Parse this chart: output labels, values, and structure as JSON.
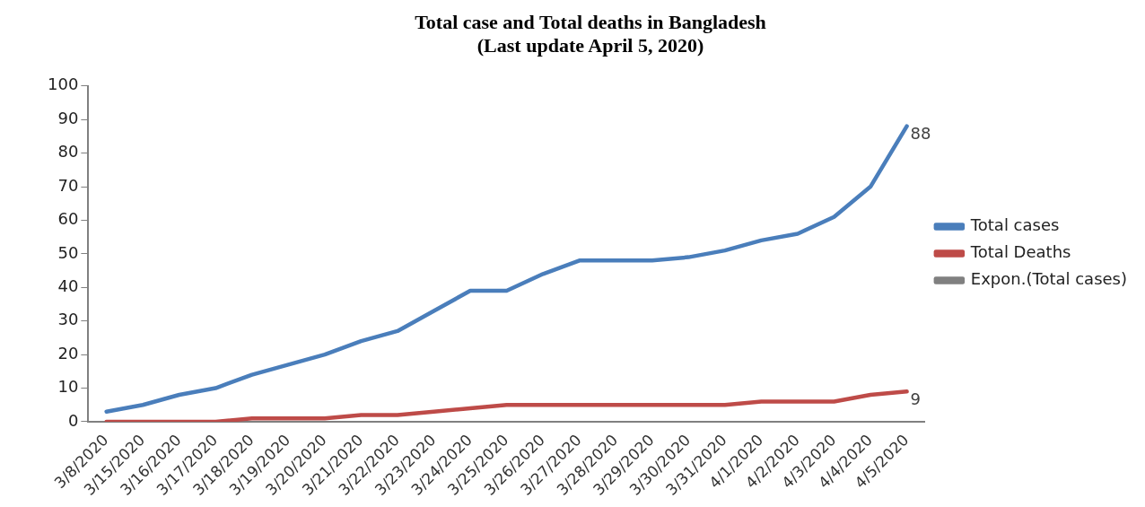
{
  "chart_data": {
    "type": "line",
    "title": "Total case and Total deaths in Bangladesh",
    "subtitle": "(Last update April 5, 2020)",
    "categories": [
      "3/8/2020",
      "3/15/2020",
      "3/16/2020",
      "3/17/2020",
      "3/18/2020",
      "3/19/2020",
      "3/20/2020",
      "3/21/2020",
      "3/22/2020",
      "3/23/2020",
      "3/24/2020",
      "3/25/2020",
      "3/26/2020",
      "3/27/2020",
      "3/28/2020",
      "3/29/2020",
      "3/30/2020",
      "3/31/2020",
      "4/1/2020",
      "4/2/2020",
      "4/3/2020",
      "4/4/2020",
      "4/5/2020"
    ],
    "series": [
      {
        "name": "Total cases",
        "color": "#4a7ebb",
        "values": [
          3,
          5,
          8,
          10,
          14,
          17,
          20,
          24,
          27,
          33,
          39,
          39,
          44,
          48,
          48,
          48,
          49,
          51,
          54,
          56,
          61,
          70,
          88
        ],
        "value_labels": [
          null,
          null,
          null,
          null,
          null,
          null,
          null,
          null,
          null,
          null,
          null,
          null,
          null,
          null,
          null,
          null,
          null,
          null,
          null,
          null,
          null,
          null,
          "88"
        ]
      },
      {
        "name": "Total Deaths",
        "color": "#be4b48",
        "values": [
          0,
          0,
          0,
          0,
          1,
          1,
          1,
          2,
          2,
          3,
          4,
          5,
          5,
          5,
          5,
          5,
          5,
          5,
          6,
          6,
          6,
          8,
          9
        ],
        "value_labels": [
          null,
          null,
          null,
          null,
          null,
          null,
          null,
          null,
          null,
          null,
          null,
          null,
          null,
          null,
          null,
          null,
          null,
          null,
          null,
          null,
          null,
          null,
          "9"
        ]
      },
      {
        "name": "Expon.(Total cases)",
        "color": "#808080",
        "values": [
          null,
          null,
          null,
          null,
          null,
          null,
          null,
          null,
          null,
          null,
          null,
          null,
          null,
          null,
          null,
          null,
          null,
          null,
          null,
          null,
          null,
          null,
          null
        ]
      }
    ],
    "ylim": [
      0,
      100
    ],
    "yticks": [
      0,
      10,
      20,
      30,
      40,
      50,
      60,
      70,
      80,
      90,
      100
    ],
    "grid": false,
    "legend": "right",
    "marker": "none",
    "line_style": "solid"
  }
}
